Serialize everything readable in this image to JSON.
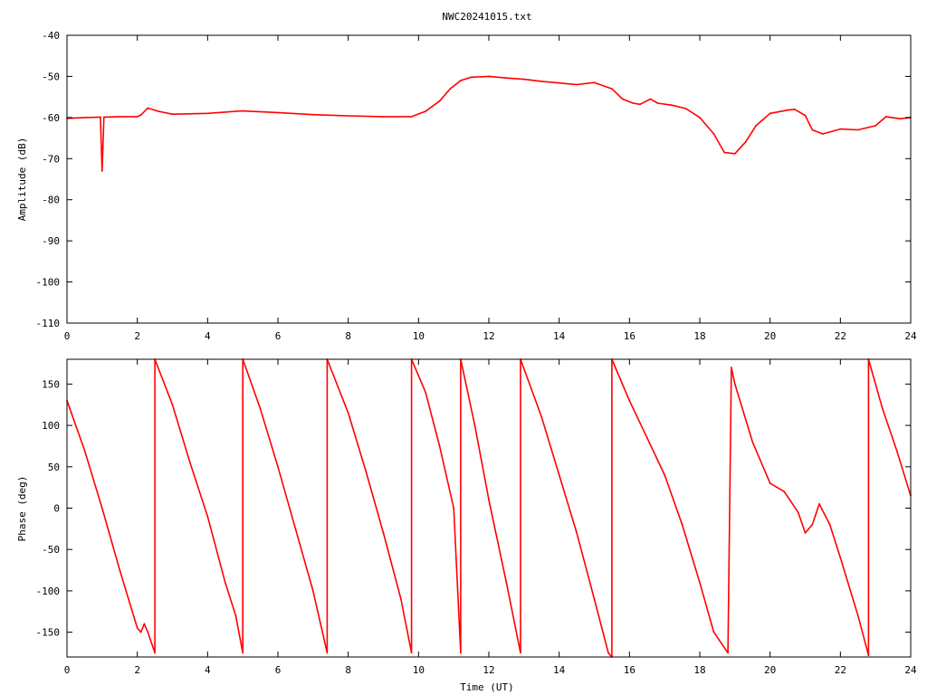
{
  "title": "NWC20241015.txt",
  "colors": {
    "series": "#ff0000",
    "axis": "#000000",
    "grid": "#000000",
    "background": "#ffffff"
  },
  "chart_data": [
    {
      "type": "line",
      "title": "NWC20241015.txt",
      "xlabel": "",
      "ylabel": "Amplitude (dB)",
      "xlim": [
        0,
        24
      ],
      "ylim": [
        -110,
        -40
      ],
      "x_ticks": [
        0,
        2,
        4,
        6,
        8,
        10,
        12,
        14,
        16,
        18,
        20,
        22,
        24
      ],
      "y_ticks": [
        -40,
        -50,
        -60,
        -70,
        -80,
        -90,
        -100,
        -110
      ],
      "y_tick_labels": [
        "-40",
        "-50",
        "-60",
        "-70",
        "-80",
        "-90",
        "-100",
        "-110"
      ],
      "grid": false,
      "series": [
        {
          "x": [
            0,
            0.5,
            0.95,
            1.0,
            1.05,
            1.5,
            2.0,
            2.1,
            2.3,
            2.6,
            3.0,
            4.0,
            4.8,
            5.0,
            6.0,
            7.0,
            8.0,
            9.0,
            9.8,
            10.2,
            10.6,
            10.9,
            11.2,
            11.5,
            12.0,
            12.5,
            13.0,
            13.5,
            14.0,
            14.5,
            15.0,
            15.5,
            15.8,
            16.1,
            16.3,
            16.6,
            16.8,
            17.2,
            17.6,
            18.0,
            18.4,
            18.7,
            19.0,
            19.3,
            19.6,
            20.0,
            20.5,
            20.7,
            21.0,
            21.2,
            21.5,
            22.0,
            22.5,
            23.0,
            23.3,
            23.7,
            24.0
          ],
          "y": [
            -60.2,
            -60.0,
            -59.9,
            -73.0,
            -59.9,
            -59.8,
            -59.8,
            -59.4,
            -57.7,
            -58.5,
            -59.2,
            -59.0,
            -58.5,
            -58.4,
            -58.8,
            -59.3,
            -59.6,
            -59.8,
            -59.8,
            -58.5,
            -56.0,
            -53.0,
            -51.0,
            -50.2,
            -50.0,
            -50.4,
            -50.7,
            -51.2,
            -51.6,
            -52.0,
            -51.5,
            -53.0,
            -55.5,
            -56.5,
            -56.8,
            -55.5,
            -56.5,
            -57.0,
            -57.8,
            -60.0,
            -64.0,
            -68.5,
            -68.8,
            -66.0,
            -62.0,
            -59.0,
            -58.2,
            -58.0,
            -59.5,
            -63.0,
            -64.0,
            -62.8,
            -63.0,
            -62.0,
            -59.8,
            -60.3,
            -60.0
          ]
        }
      ]
    },
    {
      "type": "line",
      "title": "",
      "xlabel": "Time (UT)",
      "ylabel": "Phase (deg)",
      "xlim": [
        0,
        24
      ],
      "ylim": [
        -180,
        180
      ],
      "x_ticks": [
        0,
        2,
        4,
        6,
        8,
        10,
        12,
        14,
        16,
        18,
        20,
        22,
        24
      ],
      "y_ticks": [
        150,
        100,
        50,
        0,
        -50,
        -100,
        -150
      ],
      "y_tick_labels": [
        "150",
        "100",
        "50",
        "0",
        "-50",
        "-100",
        "-150"
      ],
      "grid": false,
      "series": [
        {
          "x": [
            0,
            0.5,
            1.0,
            1.5,
            2.0,
            2.1,
            2.2,
            2.3,
            2.5,
            2.5,
            3.0,
            3.5,
            4.0,
            4.5,
            4.8,
            5.0,
            5.0,
            5.5,
            6.0,
            6.5,
            7.0,
            7.4,
            7.4,
            8.0,
            8.5,
            9.0,
            9.5,
            9.8,
            9.8,
            10.2,
            10.6,
            11.0,
            11.2,
            11.2,
            11.6,
            12.0,
            12.5,
            12.9,
            12.9,
            13.5,
            14.0,
            14.5,
            15.0,
            15.4,
            15.5,
            15.5,
            16.0,
            16.5,
            17.0,
            17.5,
            18.0,
            18.4,
            18.8,
            18.9,
            19.0,
            19.5,
            20.0,
            20.4,
            20.8,
            21.0,
            21.2,
            21.4,
            21.7,
            22.0,
            22.5,
            22.8,
            22.8,
            23.2,
            23.6,
            24.0
          ],
          "y": [
            130,
            70,
            0,
            -75,
            -145,
            -150,
            -140,
            -150,
            -175,
            180,
            125,
            55,
            -10,
            -90,
            -130,
            -175,
            180,
            120,
            50,
            -25,
            -100,
            -175,
            180,
            115,
            45,
            -30,
            -110,
            -175,
            180,
            140,
            75,
            0,
            -175,
            180,
            100,
            10,
            -90,
            -175,
            180,
            110,
            40,
            -30,
            -110,
            -175,
            -180,
            180,
            130,
            85,
            40,
            -20,
            -90,
            -150,
            -175,
            170,
            150,
            80,
            30,
            20,
            -5,
            -30,
            -20,
            5,
            -20,
            -60,
            -130,
            -178,
            180,
            120,
            70,
            15
          ]
        }
      ]
    }
  ]
}
